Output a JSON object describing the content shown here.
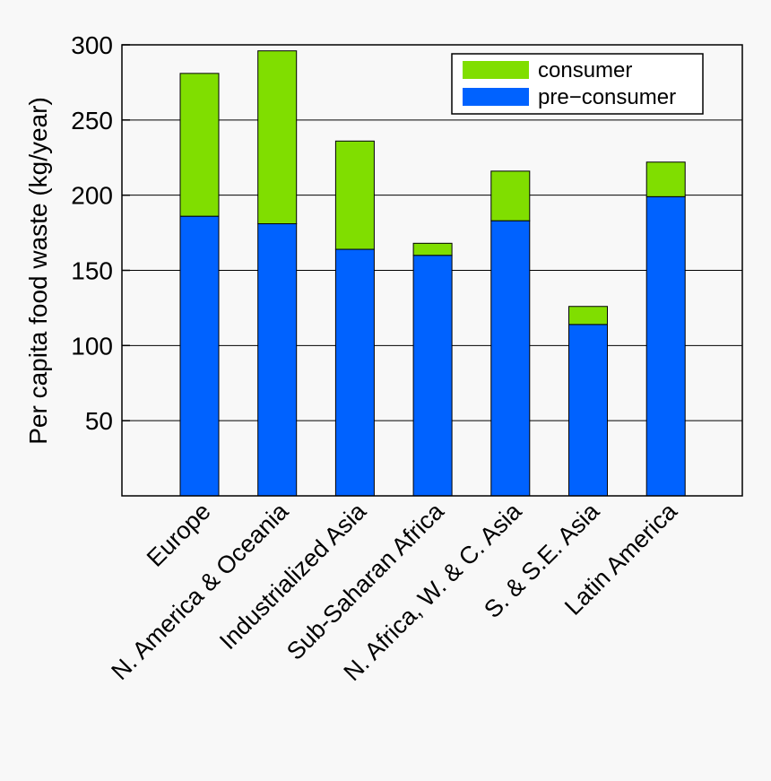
{
  "chart_data": {
    "type": "bar",
    "stacked": true,
    "title": "",
    "xlabel": "",
    "ylabel": "Per capita food waste (kg/year)",
    "ylim": [
      0,
      300
    ],
    "yticks": [
      50,
      100,
      150,
      200,
      250,
      300
    ],
    "grid": "horizontal",
    "legend_position": "top-right",
    "categories": [
      "Europe",
      "N. America & Oceania",
      "Industrialized Asia",
      "Sub-Saharan Africa",
      "N. Africa, W. & C. Asia",
      "S. & S.E. Asia",
      "Latin America"
    ],
    "series": [
      {
        "name": "pre−consumer",
        "color": "#0062ff",
        "values": [
          186,
          181,
          164,
          160,
          183,
          114,
          199
        ]
      },
      {
        "name": "consumer",
        "color": "#80de00",
        "values": [
          95,
          115,
          72,
          8,
          33,
          12,
          23
        ]
      }
    ],
    "legend_order": [
      "consumer",
      "pre−consumer"
    ]
  }
}
